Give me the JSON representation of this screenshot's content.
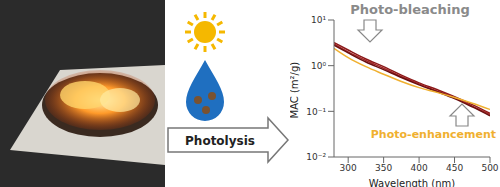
{
  "chart_data": {
    "type": "line",
    "x_label": "Wavelength (nm)",
    "y_label": "MAC (m²/g)",
    "annotations": [
      "Photo-bleaching",
      "Photo-enhancement",
      "Photolysis"
    ],
    "x": [
      280,
      300,
      325,
      350,
      375,
      400,
      425,
      450,
      475,
      500
    ],
    "series": [
      {
        "color": "#8b1a1a",
        "values": [
          3.2,
          2.2,
          1.4,
          0.95,
          0.62,
          0.42,
          0.3,
          0.21,
          0.14,
          0.09
        ]
      },
      {
        "color": "#a52a2a",
        "values": [
          3.0,
          2.0,
          1.3,
          0.88,
          0.58,
          0.4,
          0.28,
          0.2,
          0.13,
          0.085
        ]
      },
      {
        "color": "#6b0f0f",
        "values": [
          2.8,
          1.9,
          1.2,
          0.82,
          0.55,
          0.38,
          0.27,
          0.19,
          0.125,
          0.08
        ]
      },
      {
        "color": "#f0b030",
        "values": [
          2.4,
          1.5,
          0.95,
          0.65,
          0.45,
          0.33,
          0.26,
          0.2,
          0.15,
          0.11
        ]
      }
    ],
    "xlim": [
      280,
      500
    ],
    "xticks": [
      300,
      350,
      400,
      450,
      500
    ],
    "log": "y",
    "ylim": [
      0.01,
      10
    ],
    "yticks": [
      {
        "value": 0.01,
        "label": "10⁻²"
      },
      {
        "value": 0.1,
        "label": "10⁻¹"
      },
      {
        "value": 1,
        "label": "10⁰"
      },
      {
        "value": 10,
        "label": "10¹"
      }
    ],
    "grid": false
  }
}
